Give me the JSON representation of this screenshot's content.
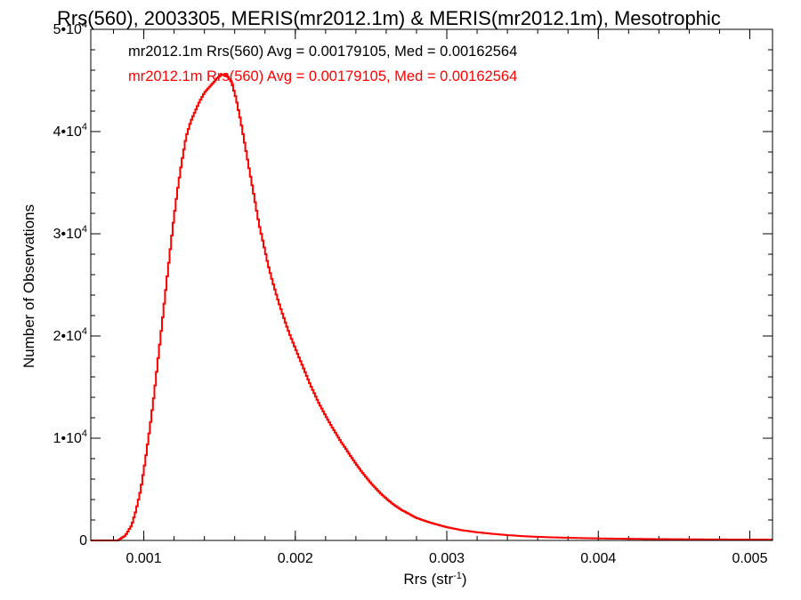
{
  "chart_data": {
    "type": "histogram",
    "title": "Rrs(560), 2003305, MERIS(mr2012.1m) & MERIS(mr2012.1m), Mesotrophic",
    "xlabel_base": "Rrs (str",
    "xlabel_sup": "-1",
    "xlabel_close": ")",
    "ylabel": "Number of Observations",
    "xlim": [
      0.00065,
      0.00515
    ],
    "ylim": [
      0,
      50000
    ],
    "grid": false,
    "x_ticks": [
      {
        "value": 0.001,
        "label": "0.001"
      },
      {
        "value": 0.002,
        "label": "0.002"
      },
      {
        "value": 0.003,
        "label": "0.003"
      },
      {
        "value": 0.004,
        "label": "0.004"
      },
      {
        "value": 0.005,
        "label": "0.005"
      }
    ],
    "y_ticks": [
      {
        "value": 0,
        "label": "0",
        "mantissa": "",
        "exponent": ""
      },
      {
        "value": 10000,
        "label": "",
        "mantissa": "1•10",
        "exponent": "4"
      },
      {
        "value": 20000,
        "label": "",
        "mantissa": "2•10",
        "exponent": "4"
      },
      {
        "value": 30000,
        "label": "",
        "mantissa": "3•10",
        "exponent": "4"
      },
      {
        "value": 40000,
        "label": "",
        "mantissa": "4•10",
        "exponent": "4"
      },
      {
        "value": 50000,
        "label": "",
        "mantissa": "5•10",
        "exponent": "4"
      }
    ],
    "bin_start": 0.00065,
    "bin_width": 1e-05,
    "x_minor_tick_step": 0.0002,
    "y_minor_tick_step": 2000,
    "series": [
      {
        "name": "mr2012.1m Rrs(560) Avg = 0.00179105, Med = 0.00162564",
        "color": "#000000"
      },
      {
        "name": "mr2012.1m Rrs(560) Avg = 0.00179105, Med = 0.00162564",
        "color": "#ff0000"
      }
    ],
    "curve_points": [
      [
        0.00065,
        0
      ],
      [
        0.00083,
        0
      ],
      [
        0.00088,
        500
      ],
      [
        0.00092,
        1500
      ],
      [
        0.00095,
        3000
      ],
      [
        0.00098,
        5000
      ],
      [
        0.00101,
        7800
      ],
      [
        0.00104,
        11000
      ],
      [
        0.00107,
        14500
      ],
      [
        0.0011,
        18500
      ],
      [
        0.00113,
        22500
      ],
      [
        0.00116,
        26500
      ],
      [
        0.00119,
        30500
      ],
      [
        0.00122,
        34000
      ],
      [
        0.00125,
        37000
      ],
      [
        0.00128,
        39500
      ],
      [
        0.00131,
        41000
      ],
      [
        0.00134,
        42000
      ],
      [
        0.00137,
        43000
      ],
      [
        0.0014,
        43800
      ],
      [
        0.00143,
        44300
      ],
      [
        0.00146,
        44800
      ],
      [
        0.00149,
        45300
      ],
      [
        0.00152,
        45600
      ],
      [
        0.00155,
        45500
      ],
      [
        0.00158,
        44800
      ],
      [
        0.00161,
        43200
      ],
      [
        0.00164,
        41000
      ],
      [
        0.00167,
        38500
      ],
      [
        0.0017,
        36000
      ],
      [
        0.00173,
        33500
      ],
      [
        0.00176,
        31000
      ],
      [
        0.00179,
        29000
      ],
      [
        0.00182,
        27000
      ],
      [
        0.00185,
        25300
      ],
      [
        0.00188,
        23800
      ],
      [
        0.00191,
        22400
      ],
      [
        0.00194,
        21100
      ],
      [
        0.00197,
        19900
      ],
      [
        0.002,
        18800
      ],
      [
        0.00205,
        17000
      ],
      [
        0.0021,
        15200
      ],
      [
        0.00215,
        13600
      ],
      [
        0.0022,
        12200
      ],
      [
        0.00225,
        10900
      ],
      [
        0.0023,
        9700
      ],
      [
        0.00235,
        8600
      ],
      [
        0.0024,
        7500
      ],
      [
        0.00245,
        6500
      ],
      [
        0.0025,
        5600
      ],
      [
        0.00255,
        4800
      ],
      [
        0.0026,
        4100
      ],
      [
        0.00265,
        3500
      ],
      [
        0.0027,
        3000
      ],
      [
        0.00275,
        2600
      ],
      [
        0.0028,
        2200
      ],
      [
        0.0029,
        1700
      ],
      [
        0.003,
        1300
      ],
      [
        0.0031,
        1000
      ],
      [
        0.0032,
        800
      ],
      [
        0.0033,
        650
      ],
      [
        0.0034,
        520
      ],
      [
        0.0035,
        420
      ],
      [
        0.0036,
        350
      ],
      [
        0.0037,
        300
      ],
      [
        0.0038,
        260
      ],
      [
        0.0039,
        230
      ],
      [
        0.004,
        200
      ],
      [
        0.0042,
        160
      ],
      [
        0.0044,
        130
      ],
      [
        0.0046,
        110
      ],
      [
        0.0048,
        95
      ],
      [
        0.005,
        85
      ],
      [
        0.00515,
        80
      ]
    ]
  }
}
